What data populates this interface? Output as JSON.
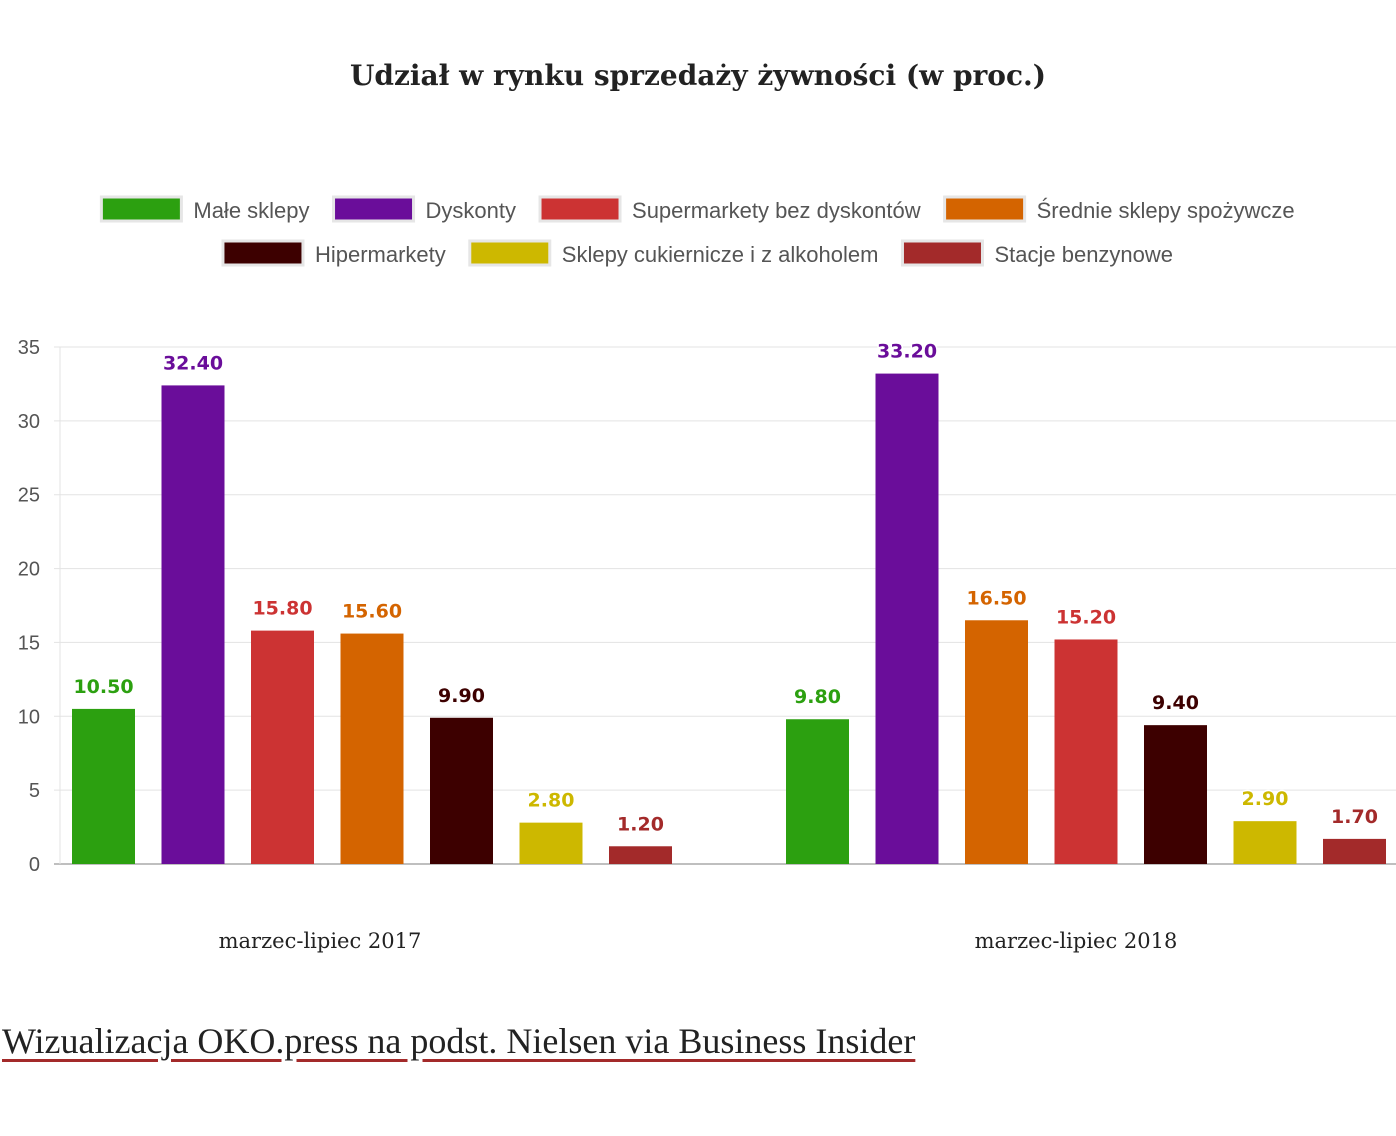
{
  "chart_data": {
    "type": "bar",
    "title": "Udział w rynku sprzedaży żywności (w proc.)",
    "xlabel": "",
    "ylabel": "",
    "ylim": [
      0,
      35
    ],
    "yticks": [
      0,
      5,
      10,
      15,
      20,
      25,
      30,
      35
    ],
    "grid": true,
    "legend_position": "top",
    "groups": [
      {
        "label": "marzec-lipiec 2017",
        "bars": [
          {
            "series": "Małe sklepy",
            "value": 10.5,
            "label": "10.50"
          },
          {
            "series": "Dyskonty",
            "value": 32.4,
            "label": "32.40"
          },
          {
            "series": "Supermarkety bez dyskontów",
            "value": 15.8,
            "label": "15.80"
          },
          {
            "series": "Średnie sklepy spożywcze",
            "value": 15.6,
            "label": "15.60"
          },
          {
            "series": "Hipermarkety",
            "value": 9.9,
            "label": "9.90"
          },
          {
            "series": "Sklepy cukiernicze i z alkoholem",
            "value": 2.8,
            "label": "2.80"
          },
          {
            "series": "Stacje benzynowe",
            "value": 1.2,
            "label": "1.20"
          }
        ]
      },
      {
        "label": "marzec-lipiec 2018",
        "bars": [
          {
            "series": "Małe sklepy",
            "value": 9.8,
            "label": "9.80"
          },
          {
            "series": "Dyskonty",
            "value": 33.2,
            "label": "33.20"
          },
          {
            "series": "Średnie sklepy spożywcze",
            "value": 16.5,
            "label": "16.50"
          },
          {
            "series": "Supermarkety bez dyskontów",
            "value": 15.2,
            "label": "15.20"
          },
          {
            "series": "Hipermarkety",
            "value": 9.4,
            "label": "9.40"
          },
          {
            "series": "Sklepy cukiernicze i z alkoholem",
            "value": 2.9,
            "label": "2.90"
          },
          {
            "series": "Stacje benzynowe",
            "value": 1.7,
            "label": "1.70"
          }
        ]
      }
    ],
    "series": [
      {
        "name": "Małe sklepy",
        "color": "#2ca010"
      },
      {
        "name": "Dyskonty",
        "color": "#6a0d9a"
      },
      {
        "name": "Supermarkety bez dyskontów",
        "color": "#cc3333"
      },
      {
        "name": "Średnie sklepy spożywcze",
        "color": "#d46400"
      },
      {
        "name": "Hipermarkety",
        "color": "#3d0000"
      },
      {
        "name": "Sklepy cukiernicze i z alkoholem",
        "color": "#cdb800"
      },
      {
        "name": "Stacje benzynowe",
        "color": "#a32a2a"
      }
    ]
  },
  "source_text": "Wizualizacja OKO.press na podst. Nielsen via Business Insider",
  "colors": {
    "grid": "#e3e3e3",
    "axis": "#aaaaaa",
    "underline": "#a32a2a"
  }
}
